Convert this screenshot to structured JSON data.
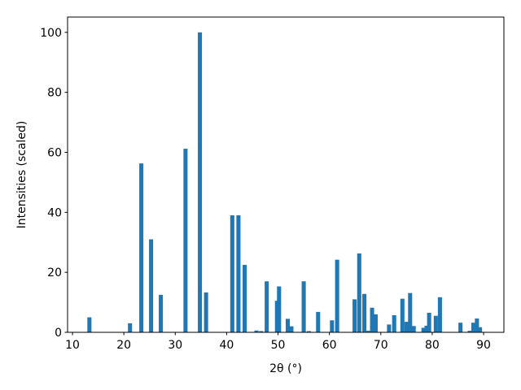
{
  "chart_data": {
    "type": "bar",
    "x_label": "2θ (°)",
    "y_label": "Intensities (scaled)",
    "x": [
      13.3,
      21.2,
      23.4,
      25.3,
      27.2,
      32.0,
      34.8,
      36.0,
      41.1,
      42.3,
      43.5,
      45.8,
      46.7,
      47.8,
      49.8,
      50.2,
      51.9,
      52.6,
      55.0,
      56.0,
      57.8,
      60.5,
      61.5,
      64.9,
      65.8,
      66.8,
      67.5,
      68.3,
      69.0,
      71.6,
      72.6,
      74.2,
      75.0,
      75.7,
      76.4,
      78.3,
      78.9,
      79.4,
      80.7,
      81.5,
      85.5,
      87.3,
      88.0,
      88.7,
      89.3
    ],
    "values": [
      5,
      3,
      56.3,
      31,
      12.5,
      61.2,
      100,
      13.3,
      39,
      39,
      22.5,
      0.6,
      0.4,
      17,
      10.5,
      15.3,
      4.5,
      2,
      17,
      0.4,
      6.8,
      4,
      24.2,
      11,
      26.3,
      12.8,
      0.5,
      8.2,
      6,
      2.6,
      5.7,
      11.2,
      3.5,
      13.1,
      2.1,
      1.5,
      2.2,
      6.5,
      5.5,
      11.7,
      3.2,
      0.5,
      3.2,
      4.6,
      1.7
    ],
    "color": "#1f77b4",
    "xlim": [
      9.05,
      93.95
    ],
    "ylim": [
      0,
      105.1
    ],
    "xticks": [
      10,
      20,
      30,
      40,
      50,
      60,
      70,
      80,
      90
    ],
    "yticks": [
      0,
      20,
      40,
      60,
      80,
      100
    ],
    "grid": false
  }
}
